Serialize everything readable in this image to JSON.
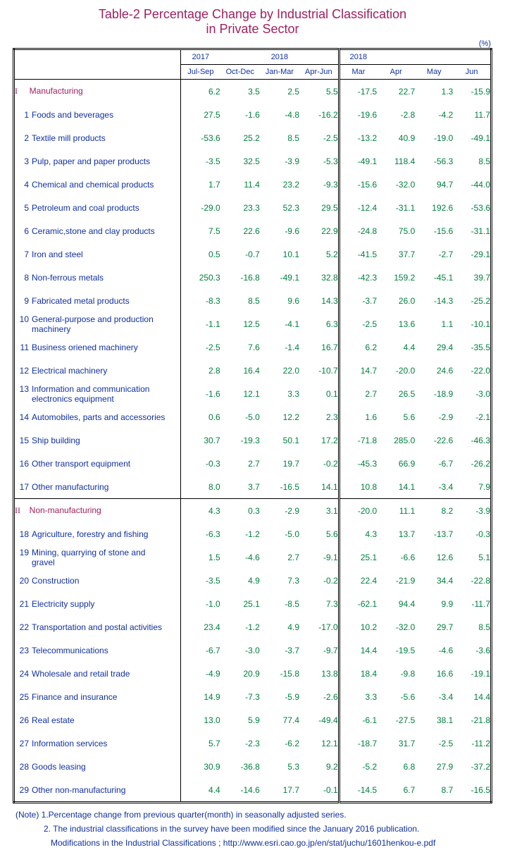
{
  "colors": {
    "title": "#a02060",
    "header_text": "#1030a0",
    "section_text": "#a02060",
    "row_label": "#1030a0",
    "value_text": "#008040",
    "note_text": "#1030a0"
  },
  "title_line1": "Table-2   Percentage Change by Industrial Classification",
  "title_line2": "in Private Sector",
  "unit_label": "(%)",
  "header": {
    "q_top": [
      "2017",
      "",
      "2018",
      ""
    ],
    "q_bot": [
      "Jul-Sep",
      "Oct-Dec",
      "Jan-Mar",
      "Apr-Jun"
    ],
    "m_top": [
      "2018",
      "",
      "",
      ""
    ],
    "m_bot": [
      "Mar",
      "Apr",
      "May",
      "Jun"
    ]
  },
  "sections": [
    {
      "roman": "I",
      "label": "Manufacturing",
      "values": [
        "6.2",
        "3.5",
        "2.5",
        "5.5",
        "-17.5",
        "22.7",
        "1.3",
        "-15.9"
      ],
      "rows": [
        {
          "n": "1",
          "label": "Foods and beverages",
          "v": [
            "27.5",
            "-1.6",
            "-4.8",
            "-16.2",
            "-19.6",
            "-2.8",
            "-4.2",
            "11.7"
          ]
        },
        {
          "n": "2",
          "label": "Textile mill products",
          "v": [
            "-53.6",
            "25.2",
            "8.5",
            "-2.5",
            "-13.2",
            "40.9",
            "-19.0",
            "-49.1"
          ]
        },
        {
          "n": "3",
          "label": "Pulp, paper and paper products",
          "v": [
            "-3.5",
            "32.5",
            "-3.9",
            "-5.3",
            "-49.1",
            "118.4",
            "-56.3",
            "8.5"
          ]
        },
        {
          "n": "4",
          "label": "Chemical and chemical products",
          "v": [
            "1.7",
            "11.4",
            "23.2",
            "-9.3",
            "-15.6",
            "-32.0",
            "94.7",
            "-44.0"
          ]
        },
        {
          "n": "5",
          "label": "Petroleum and coal products",
          "v": [
            "-29.0",
            "23.3",
            "52.3",
            "29.5",
            "-12.4",
            "-31.1",
            "192.6",
            "-53.6"
          ]
        },
        {
          "n": "6",
          "label": "Ceramic,stone and clay products",
          "v": [
            "7.5",
            "22.6",
            "-9.6",
            "22.9",
            "-24.8",
            "75.0",
            "-15.6",
            "-31.1"
          ]
        },
        {
          "n": "7",
          "label": "Iron and steel",
          "v": [
            "0.5",
            "-0.7",
            "10.1",
            "5.2",
            "-41.5",
            "37.7",
            "-2.7",
            "-29.1"
          ]
        },
        {
          "n": "8",
          "label": "Non-ferrous metals",
          "v": [
            "250.3",
            "-16.8",
            "-49.1",
            "32.8",
            "-42.3",
            "159.2",
            "-45.1",
            "39.7"
          ]
        },
        {
          "n": "9",
          "label": "Fabricated metal products",
          "v": [
            "-8.3",
            "8.5",
            "9.6",
            "14.3",
            "-3.7",
            "26.0",
            "-14.3",
            "-25.2"
          ]
        },
        {
          "n": "10",
          "label": "General-purpose and production machinery",
          "v": [
            "-1.1",
            "12.5",
            "-4.1",
            "6.3",
            "-2.5",
            "13.6",
            "1.1",
            "-10.1"
          ]
        },
        {
          "n": "11",
          "label": "Business oriened machinery",
          "v": [
            "-2.5",
            "7.6",
            "-1.4",
            "16.7",
            "6.2",
            "4.4",
            "29.4",
            "-35.5"
          ]
        },
        {
          "n": "12",
          "label": "Electrical machinery",
          "v": [
            "2.8",
            "16.4",
            "22.0",
            "-10.7",
            "14.7",
            "-20.0",
            "24.6",
            "-22.0"
          ]
        },
        {
          "n": "13",
          "label": "Information and communication electronics equipment",
          "v": [
            "-1.6",
            "12.1",
            "3.3",
            "0.1",
            "2.7",
            "26.5",
            "-18.9",
            "-3.0"
          ]
        },
        {
          "n": "14",
          "label": "Automobiles, parts and accessories",
          "v": [
            "0.6",
            "-5.0",
            "12.2",
            "2.3",
            "1.6",
            "5.6",
            "-2.9",
            "-2.1"
          ]
        },
        {
          "n": "15",
          "label": "Ship building",
          "v": [
            "30.7",
            "-19.3",
            "50.1",
            "17.2",
            "-71.8",
            "285.0",
            "-22.6",
            "-46.3"
          ]
        },
        {
          "n": "16",
          "label": "Other transport equipment",
          "v": [
            "-0.3",
            "2.7",
            "19.7",
            "-0.2",
            "-45.3",
            "66.9",
            "-6.7",
            "-26.2"
          ]
        },
        {
          "n": "17",
          "label": "Other manufacturing",
          "v": [
            "8.0",
            "3.7",
            "-16.5",
            "14.1",
            "10.8",
            "14.1",
            "-3.4",
            "7.9"
          ]
        }
      ]
    },
    {
      "roman": "II",
      "label": "Non-manufacturing",
      "values": [
        "4.3",
        "0.3",
        "-2.9",
        "3.1",
        "-20.0",
        "11.1",
        "8.2",
        "-3.9"
      ],
      "rows": [
        {
          "n": "18",
          "label": "Agriculture, forestry and fishing",
          "v": [
            "-6.3",
            "-1.2",
            "-5.0",
            "5.6",
            "4.3",
            "13.7",
            "-13.7",
            "-0.3"
          ]
        },
        {
          "n": "19",
          "label": "Mining, quarrying of stone and gravel",
          "v": [
            "1.5",
            "-4.6",
            "2.7",
            "-9.1",
            "25.1",
            "-6.6",
            "12.6",
            "5.1"
          ]
        },
        {
          "n": "20",
          "label": "Construction",
          "v": [
            "-3.5",
            "4.9",
            "7.3",
            "-0.2",
            "22.4",
            "-21.9",
            "34.4",
            "-22.8"
          ]
        },
        {
          "n": "21",
          "label": "Electricity supply",
          "v": [
            "-1.0",
            "25.1",
            "-8.5",
            "7.3",
            "-62.1",
            "94.4",
            "9.9",
            "-11.7"
          ]
        },
        {
          "n": "22",
          "label": "Transportation and postal activities",
          "v": [
            "23.4",
            "-1.2",
            "4.9",
            "-17.0",
            "10.2",
            "-32.0",
            "29.7",
            "8.5"
          ]
        },
        {
          "n": "23",
          "label": "Telecommunications",
          "v": [
            "-6.7",
            "-3.0",
            "-3.7",
            "-9.7",
            "14.4",
            "-19.5",
            "-4.6",
            "-3.6"
          ]
        },
        {
          "n": "24",
          "label": "Wholesale and retail trade",
          "v": [
            "-4.9",
            "20.9",
            "-15.8",
            "13.8",
            "18.4",
            "-9.8",
            "16.6",
            "-19.1"
          ]
        },
        {
          "n": "25",
          "label": "Finance and insurance",
          "v": [
            "14.9",
            "-7.3",
            "-5.9",
            "-2.6",
            "3.3",
            "-5.6",
            "-3.4",
            "14.4"
          ]
        },
        {
          "n": "26",
          "label": "Real estate",
          "v": [
            "13.0",
            "5.9",
            "77.4",
            "-49.4",
            "-6.1",
            "-27.5",
            "38.1",
            "-21.8"
          ]
        },
        {
          "n": "27",
          "label": "Information services",
          "v": [
            "5.7",
            "-2.3",
            "-6.2",
            "12.1",
            "-18.7",
            "31.7",
            "-2.5",
            "-11.2"
          ]
        },
        {
          "n": "28",
          "label": "Goods leasing",
          "v": [
            "30.9",
            "-36.8",
            "5.3",
            "9.2",
            "-5.2",
            "6.8",
            "27.9",
            "-37.2"
          ]
        },
        {
          "n": "29",
          "label": "Other non-manufacturing",
          "v": [
            "4.4",
            "-14.6",
            "17.7",
            "-0.1",
            "-14.5",
            "6.7",
            "8.7",
            "-16.5"
          ]
        }
      ]
    }
  ],
  "notes": {
    "n1": "(Note) 1.Percentage change from previous quarter(month) in seasonally adjusted series.",
    "n2": "2. The industrial classifications in the survey have been modified since  the January 2016 publication.",
    "n3": "Modifications in the Industrial Classifications ;  http://www.esri.cao.go.jp/en/stat/juchu/1601henkou-e.pdf"
  }
}
